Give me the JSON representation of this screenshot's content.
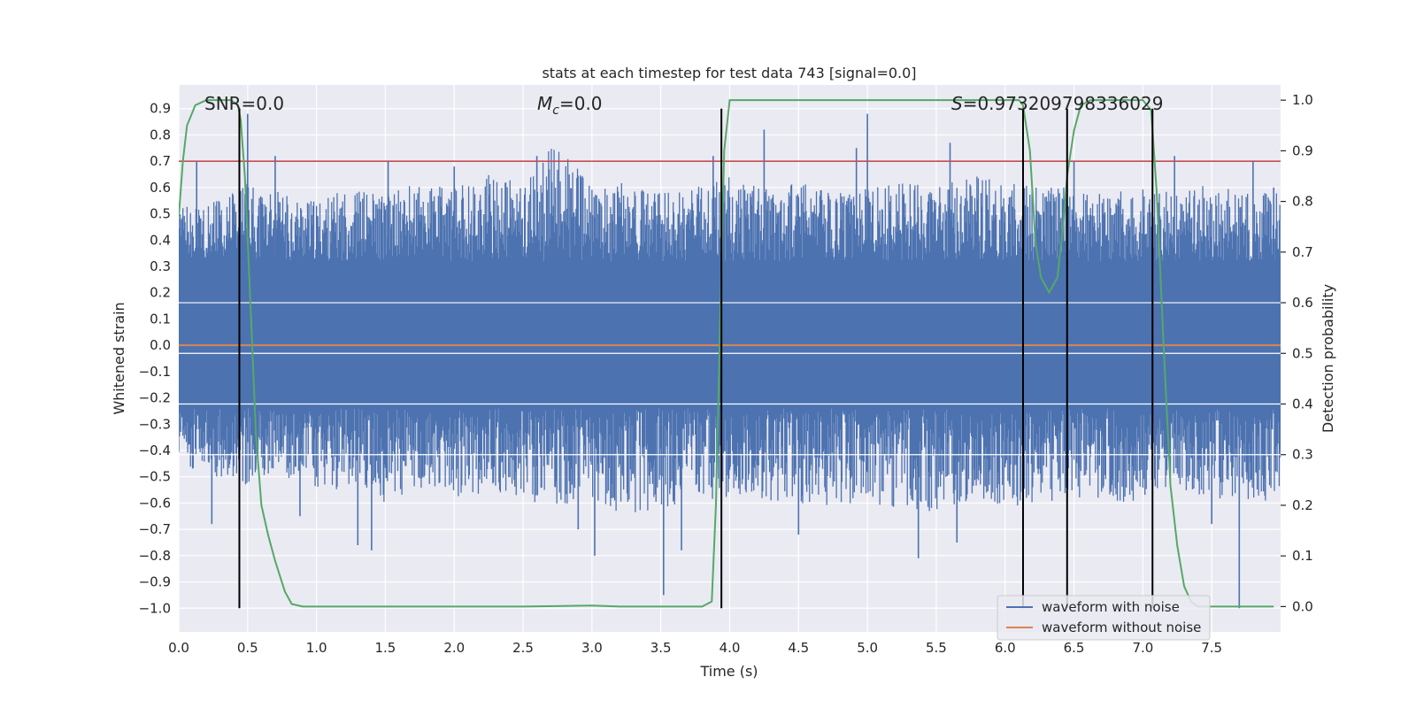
{
  "chart_data": {
    "type": "line",
    "title": "stats at each timestep for test data 743 [signal=0.0]",
    "xlabel": "Time (s)",
    "ylabel_left": "Whitened strain",
    "ylabel_right": "Detection probability",
    "xlim": [
      0.0,
      8.0
    ],
    "ylim_left": [
      -1.09,
      0.99
    ],
    "ylim_right": [
      -0.05,
      1.03
    ],
    "x_ticks": [
      "0.0",
      "0.5",
      "1.0",
      "1.5",
      "2.0",
      "2.5",
      "3.0",
      "3.5",
      "4.0",
      "4.5",
      "5.0",
      "5.5",
      "6.0",
      "6.5",
      "7.0",
      "7.5"
    ],
    "y_left_ticks": [
      "0.9",
      "0.8",
      "0.7",
      "0.6",
      "0.5",
      "0.4",
      "0.3",
      "0.2",
      "0.1",
      "0.0",
      "−0.1",
      "−0.2",
      "−0.3",
      "−0.4",
      "−0.5",
      "−0.6",
      "−0.7",
      "−0.8",
      "−0.9",
      "−1.0"
    ],
    "y_right_ticks": [
      "1.0",
      "0.9",
      "0.8",
      "0.7",
      "0.6",
      "0.5",
      "0.4",
      "0.3",
      "0.2",
      "0.1",
      "0.0"
    ],
    "grid": true,
    "legend_position": "lower-right",
    "colors": {
      "noise": "#4c72b0",
      "clean": "#dd8452",
      "probability": "#55a868",
      "threshold": "#c44e52",
      "markers": "#000000",
      "background": "#eaeaf2",
      "grid": "#ffffff"
    },
    "annotations": {
      "snr": "SNR=0.0",
      "mc_symbol": "M",
      "mc_sub": "c",
      "mc_value": "=0.0",
      "s_symbol": "S",
      "s_value": "=0.973209798336029"
    },
    "series": [
      {
        "name": "waveform with noise",
        "axis": "left",
        "envelope": {
          "x": [
            0.0,
            0.25,
            0.5,
            0.75,
            1.0,
            1.25,
            1.5,
            1.75,
            2.0,
            2.25,
            2.5,
            2.75,
            3.0,
            3.25,
            3.5,
            3.75,
            4.0,
            4.25,
            4.5,
            4.75,
            5.0,
            5.25,
            5.5,
            5.75,
            6.0,
            6.25,
            6.5,
            6.75,
            7.0,
            7.25,
            7.5,
            7.75,
            8.0
          ],
          "upper": [
            0.52,
            0.55,
            0.62,
            0.58,
            0.55,
            0.6,
            0.58,
            0.62,
            0.6,
            0.65,
            0.62,
            0.78,
            0.6,
            0.62,
            0.58,
            0.6,
            0.65,
            0.6,
            0.62,
            0.58,
            0.6,
            0.62,
            0.6,
            0.65,
            0.62,
            0.6,
            0.6,
            0.58,
            0.6,
            0.58,
            0.62,
            0.58,
            0.6
          ],
          "lower": [
            -0.45,
            -0.5,
            -0.55,
            -0.5,
            -0.55,
            -0.55,
            -0.6,
            -0.55,
            -0.6,
            -0.55,
            -0.6,
            -0.62,
            -0.6,
            -0.65,
            -0.62,
            -0.6,
            -0.58,
            -0.6,
            -0.6,
            -0.62,
            -0.6,
            -0.62,
            -0.65,
            -0.6,
            -0.62,
            -0.6,
            -0.58,
            -0.6,
            -0.6,
            -0.55,
            -0.58,
            -0.6,
            -0.6
          ]
        },
        "spikes": [
          [
            0.13,
            0.7
          ],
          [
            0.24,
            -0.68
          ],
          [
            0.5,
            0.88
          ],
          [
            0.7,
            0.72
          ],
          [
            0.88,
            -0.65
          ],
          [
            1.3,
            -0.76
          ],
          [
            1.4,
            -0.78
          ],
          [
            1.52,
            0.7
          ],
          [
            2.0,
            0.68
          ],
          [
            2.6,
            0.72
          ],
          [
            2.9,
            -0.7
          ],
          [
            3.02,
            -0.8
          ],
          [
            3.52,
            -0.95
          ],
          [
            3.65,
            -0.78
          ],
          [
            3.88,
            0.72
          ],
          [
            4.25,
            0.82
          ],
          [
            4.5,
            -0.72
          ],
          [
            4.92,
            0.75
          ],
          [
            5.0,
            0.88
          ],
          [
            5.37,
            -0.81
          ],
          [
            5.6,
            0.77
          ],
          [
            5.65,
            -0.75
          ],
          [
            6.5,
            0.7
          ],
          [
            7.23,
            0.72
          ],
          [
            7.5,
            -0.68
          ],
          [
            7.7,
            -1.0
          ],
          [
            7.8,
            0.7
          ],
          [
            7.95,
            0.6
          ]
        ]
      },
      {
        "name": "waveform without noise",
        "axis": "left",
        "x": [
          0.0,
          8.0
        ],
        "y": [
          0.0,
          0.0
        ]
      },
      {
        "axis": "right",
        "x": [
          0.0,
          0.03,
          0.06,
          0.12,
          0.2,
          0.3,
          0.38,
          0.43,
          0.45,
          0.48,
          0.52,
          0.56,
          0.6,
          0.65,
          0.7,
          0.77,
          0.82,
          0.9,
          1.5,
          2.0,
          2.5,
          3.0,
          3.2,
          3.5,
          3.8,
          3.87,
          3.9,
          3.93,
          3.96,
          4.0,
          5.0,
          5.5,
          6.0,
          6.1,
          6.13,
          6.18,
          6.22,
          6.26,
          6.32,
          6.38,
          6.42,
          6.45,
          6.5,
          6.55,
          6.62,
          6.7,
          6.9,
          7.0,
          7.06,
          7.1,
          7.15,
          7.2,
          7.25,
          7.3,
          7.35,
          7.4,
          7.5,
          7.75,
          7.95
        ],
        "y": [
          0.77,
          0.88,
          0.95,
          0.99,
          1.0,
          1.0,
          1.0,
          0.99,
          0.96,
          0.85,
          0.6,
          0.34,
          0.2,
          0.14,
          0.09,
          0.03,
          0.005,
          0.0,
          0.0,
          0.0,
          0.0,
          0.002,
          0.0,
          0.0,
          0.0,
          0.01,
          0.2,
          0.55,
          0.9,
          1.0,
          1.0,
          1.0,
          1.0,
          1.0,
          0.99,
          0.9,
          0.72,
          0.65,
          0.62,
          0.65,
          0.75,
          0.85,
          0.94,
          0.99,
          1.0,
          1.0,
          1.0,
          1.0,
          0.98,
          0.82,
          0.52,
          0.24,
          0.12,
          0.04,
          0.01,
          0.0,
          0.0,
          0.0,
          0.0
        ]
      },
      {
        "axis": "left",
        "x": [
          0.0,
          8.0
        ],
        "y": [
          0.7,
          0.7
        ]
      }
    ],
    "vertical_markers_x": [
      0.44,
      3.94,
      6.13,
      6.45,
      7.07
    ],
    "legend": {
      "items": [
        "waveform with noise",
        "waveform without noise"
      ]
    }
  }
}
